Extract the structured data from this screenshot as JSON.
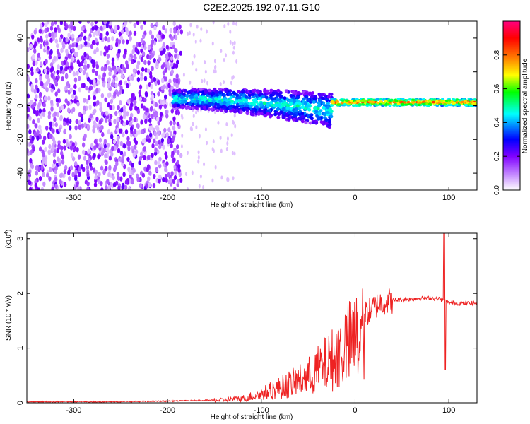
{
  "title": "C2E2.2025.192.07.11.G10",
  "chart_data": [
    {
      "type": "heatmap",
      "xlabel": "Height of straight line (km)",
      "ylabel": "Frequency (Hz)",
      "xlim": [
        -350,
        130
      ],
      "ylim": [
        -50,
        50
      ],
      "xticks": [
        -300,
        -200,
        -100,
        0,
        100
      ],
      "yticks": [
        -40,
        -20,
        0,
        20,
        40
      ],
      "colorbar": {
        "label": "Normalized spectral amplitude",
        "range": [
          0,
          1
        ],
        "ticks": [
          "0.0",
          "0.2",
          "0.4",
          "0.6",
          "0.8"
        ],
        "colors": [
          "#ffffff",
          "#cc99ff",
          "#8000ff",
          "#0000ff",
          "#00ffff",
          "#00ff00",
          "#ffff00",
          "#ff8000",
          "#ff0000",
          "#ff0080"
        ]
      },
      "features": [
        {
          "region": "noise",
          "x_range": [
            -350,
            -185
          ],
          "freq_range": [
            -50,
            50
          ],
          "amplitude": 0.1
        },
        {
          "region": "band",
          "x_range": [
            -195,
            -25
          ],
          "freq_center_start": 4,
          "freq_center_end": -3,
          "amplitude": 0.35
        },
        {
          "region": "line",
          "x_range": [
            -25,
            130
          ],
          "freq_center": 2,
          "amplitude": 0.8
        }
      ]
    },
    {
      "type": "line",
      "xlabel": "Height of straight line (km)",
      "ylabel": "SNR (10 * v/v)",
      "y_multiplier": "(x10^4)",
      "xlim": [
        -350,
        130
      ],
      "ylim": [
        0,
        3.1
      ],
      "xticks": [
        -300,
        -200,
        -100,
        0,
        100
      ],
      "yticks": [
        0,
        1,
        2,
        3
      ],
      "color": "#ee2222",
      "x": [
        -350,
        -300,
        -250,
        -200,
        -150,
        -120,
        -100,
        -80,
        -60,
        -50,
        -40,
        -30,
        -20,
        -10,
        0,
        10,
        20,
        30,
        40,
        60,
        80,
        90,
        93,
        95,
        97,
        100,
        110,
        120,
        130
      ],
      "y": [
        0.02,
        0.02,
        0.02,
        0.03,
        0.05,
        0.1,
        0.2,
        0.35,
        0.5,
        0.6,
        0.75,
        0.9,
        1.05,
        1.3,
        1.45,
        1.6,
        1.75,
        1.85,
        1.87,
        1.9,
        1.92,
        1.9,
        1.88,
        1.85,
        1.85,
        1.83,
        1.82,
        1.82,
        1.82
      ],
      "spikes": [
        {
          "x": 95,
          "y_max": 3.1,
          "y_min": 0.6
        }
      ]
    }
  ]
}
